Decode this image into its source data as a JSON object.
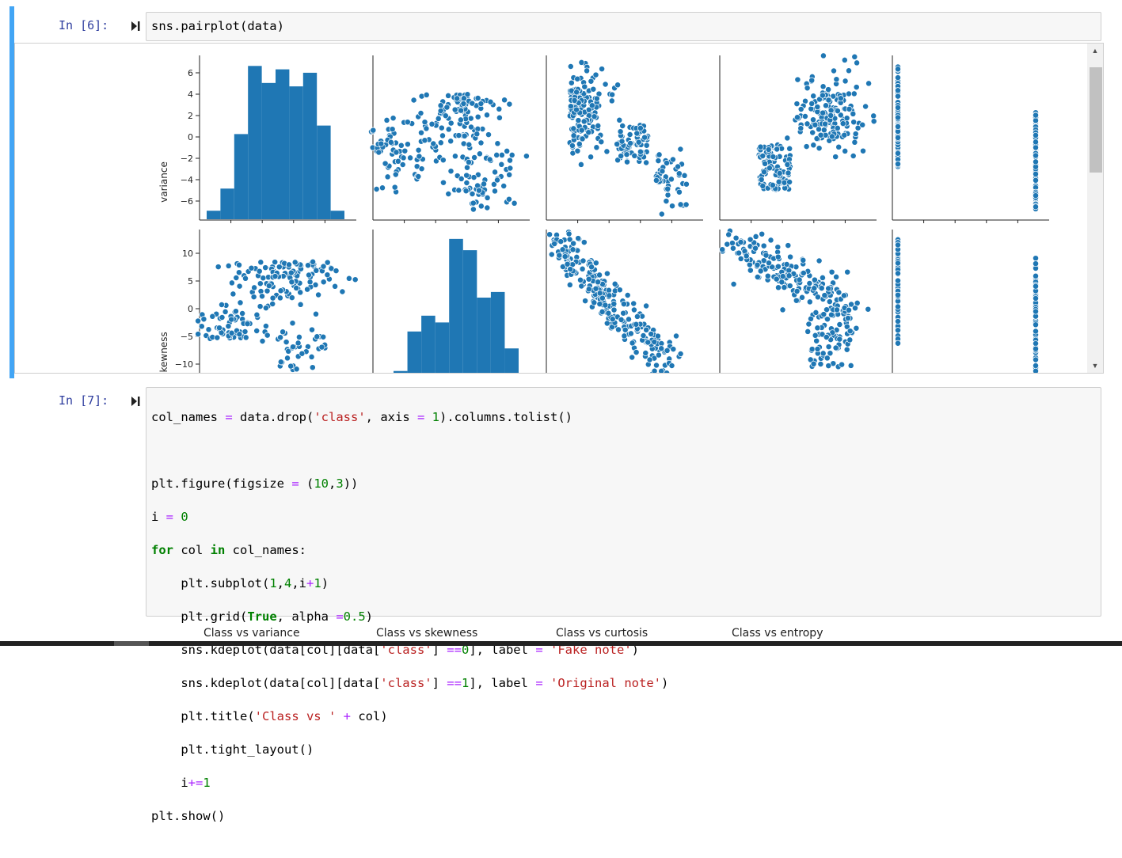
{
  "cells": [
    {
      "prompt": "In [6]:",
      "code": "sns.pairplot(data)"
    },
    {
      "prompt": "In [7]:",
      "code_lines": [
        "col_names = data.drop('class', axis = 1).columns.tolist()",
        "",
        "plt.figure(figsize = (10,3))",
        "i = 0",
        "for col in col_names:",
        "    plt.subplot(1,4,i+1)",
        "    plt.grid(True, alpha =0.5)",
        "    sns.kdeplot(data[col][data['class'] ==0], label = 'Fake note')",
        "    sns.kdeplot(data[col][data['class'] ==1], label = 'Original note')",
        "    plt.title('Class vs ' + col)",
        "    plt.tight_layout()",
        "    i+=1",
        "plt.show()"
      ]
    }
  ],
  "pairplot": {
    "row_labels": [
      "variance",
      "skewness"
    ],
    "variance_ticks": [
      "6",
      "4",
      "2",
      "0",
      "−2",
      "−4",
      "−6"
    ],
    "skewness_ticks": [
      "10",
      "5",
      "0",
      "−5",
      "−10"
    ],
    "color": "#1f77b4"
  },
  "chart_data": {
    "type": "scatter",
    "title": "",
    "panels": [
      {
        "row": "variance",
        "col": "variance",
        "kind": "histogram",
        "bin_heights": [
          0.5,
          1.8,
          5.0,
          9.0,
          8.0,
          8.8,
          7.8,
          8.6,
          5.5,
          0.5
        ]
      },
      {
        "row": "skewness",
        "col": "skewness",
        "kind": "histogram",
        "bin_heights": [
          0.3,
          3.8,
          5.2,
          4.6,
          12.0,
          11.0,
          6.8,
          7.3,
          2.3
        ]
      }
    ],
    "class_strip_values": {
      "class_0_variance_range": [
        -2.8,
        6.8
      ],
      "class_1_variance_range": [
        -7.0,
        2.4
      ]
    },
    "ylim_variance": [
      -7.0,
      7.0
    ],
    "ylim_skewness": [
      -13.0,
      13.0
    ]
  },
  "next_output_titles": [
    "Class vs variance",
    "Class vs skewness",
    "Class vs curtosis",
    "Class vs entropy"
  ],
  "scrollbar": {
    "up_arrow": "▲",
    "down_arrow": "▼"
  }
}
